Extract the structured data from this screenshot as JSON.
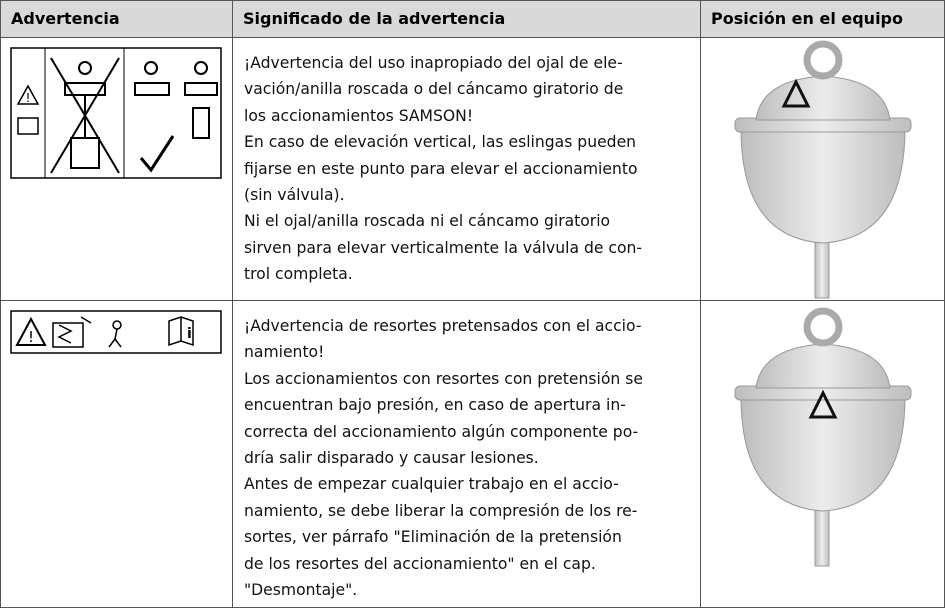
{
  "header": {
    "col1": "Advertencia",
    "col2": "Significado de la advertencia",
    "col3": "Posición en el equipo"
  },
  "rows": [
    {
      "lines": [
        "¡Advertencia del uso inapropiado del ojal de ele-",
        "vación/anilla roscada o del cáncamo giratorio de",
        "los accionamientos SAMSON!",
        "En caso de elevación vertical, las eslingas pueden",
        "fijarse en este punto para elevar el accionamiento",
        "(sin válvula).",
        "Ni el ojal/anilla roscada ni el cáncamo giratorio",
        "sirven para elevar verticalmente la válvula de con-",
        "trol completa."
      ]
    },
    {
      "lines": [
        "¡Advertencia de resortes pretensados con el accio-",
        "namiento!",
        "Los accionamientos con resortes con pretensión se",
        "encuentran bajo presión, en caso de apertura in-",
        "correcta del accionamiento algún componente po-",
        "dría salir disparado y causar lesiones.",
        "Antes de empezar cualquier trabajo en el accio-",
        "namiento, se debe liberar la compresión de los re-",
        "sortes, ver párrafo \"Eliminación de la pretensión",
        "de los resortes del accionamiento\" en el cap.",
        "\"Desmontaje\"."
      ]
    }
  ]
}
